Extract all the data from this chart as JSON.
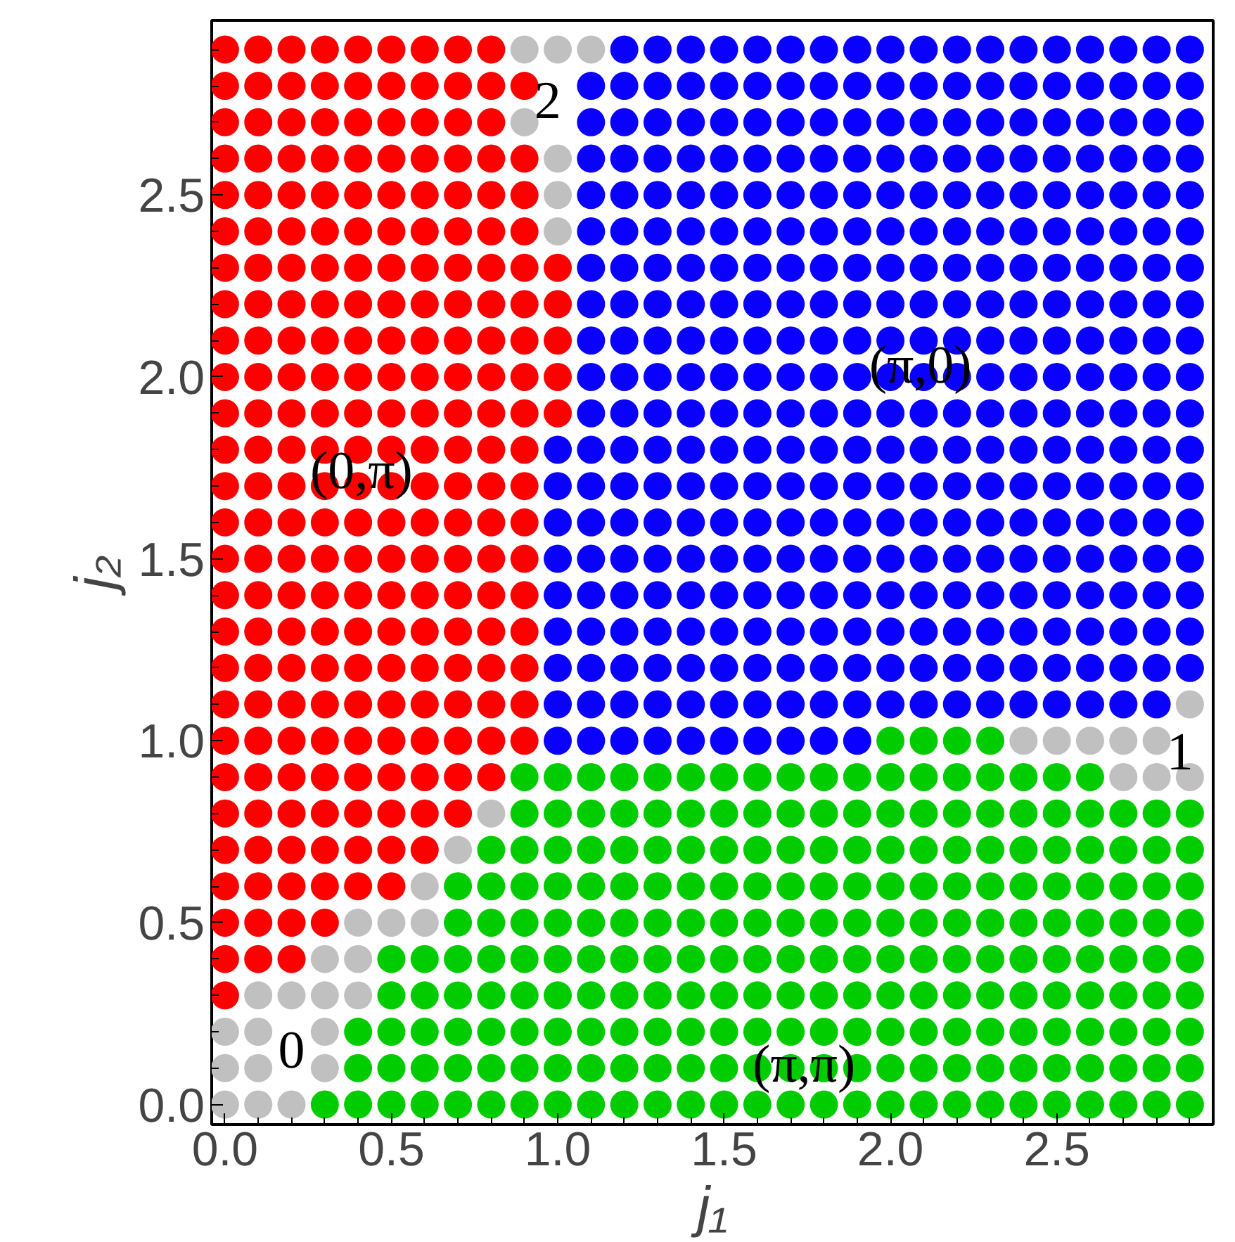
{
  "chart_data": {
    "type": "scatter",
    "xlabel": "j₁",
    "ylabel": "j₂",
    "marker": "circle",
    "grid": false,
    "xlim": [
      -0.04,
      2.97
    ],
    "ylim": [
      -0.055,
      2.98
    ],
    "xticks": [
      {
        "value": 0,
        "label": "0.0"
      },
      {
        "value": 0.1,
        "label": null
      },
      {
        "value": 0.2,
        "label": null
      },
      {
        "value": 0.3,
        "label": null
      },
      {
        "value": 0.4,
        "label": null
      },
      {
        "value": 0.5,
        "label": "0.5"
      },
      {
        "value": 0.6,
        "label": null
      },
      {
        "value": 0.7,
        "label": null
      },
      {
        "value": 0.8,
        "label": null
      },
      {
        "value": 0.9,
        "label": null
      },
      {
        "value": 1,
        "label": "1.0"
      },
      {
        "value": 1.1,
        "label": null
      },
      {
        "value": 1.2,
        "label": null
      },
      {
        "value": 1.3,
        "label": null
      },
      {
        "value": 1.4,
        "label": null
      },
      {
        "value": 1.5,
        "label": "1.5"
      },
      {
        "value": 1.6,
        "label": null
      },
      {
        "value": 1.7,
        "label": null
      },
      {
        "value": 1.8,
        "label": null
      },
      {
        "value": 1.9,
        "label": null
      },
      {
        "value": 2,
        "label": "2.0"
      },
      {
        "value": 2.1,
        "label": null
      },
      {
        "value": 2.2,
        "label": null
      },
      {
        "value": 2.3,
        "label": null
      },
      {
        "value": 2.4,
        "label": null
      },
      {
        "value": 2.5,
        "label": "2.5"
      },
      {
        "value": 2.6,
        "label": null
      },
      {
        "value": 2.7,
        "label": null
      },
      {
        "value": 2.8,
        "label": null
      },
      {
        "value": 2.9,
        "label": null
      }
    ],
    "yticks": [
      {
        "value": 0,
        "label": "0.0"
      },
      {
        "value": 0.1,
        "label": null
      },
      {
        "value": 0.2,
        "label": null
      },
      {
        "value": 0.3,
        "label": null
      },
      {
        "value": 0.4,
        "label": null
      },
      {
        "value": 0.5,
        "label": "0.5"
      },
      {
        "value": 0.6,
        "label": null
      },
      {
        "value": 0.7,
        "label": null
      },
      {
        "value": 0.8,
        "label": null
      },
      {
        "value": 0.9,
        "label": null
      },
      {
        "value": 1,
        "label": "1.0"
      },
      {
        "value": 1.1,
        "label": null
      },
      {
        "value": 1.2,
        "label": null
      },
      {
        "value": 1.3,
        "label": null
      },
      {
        "value": 1.4,
        "label": null
      },
      {
        "value": 1.5,
        "label": "1.5"
      },
      {
        "value": 1.6,
        "label": null
      },
      {
        "value": 1.7,
        "label": null
      },
      {
        "value": 1.8,
        "label": null
      },
      {
        "value": 1.9,
        "label": null
      },
      {
        "value": 2,
        "label": "2.0"
      },
      {
        "value": 2.1,
        "label": null
      },
      {
        "value": 2.2,
        "label": null
      },
      {
        "value": 2.3,
        "label": null
      },
      {
        "value": 2.4,
        "label": null
      },
      {
        "value": 2.5,
        "label": "2.5"
      },
      {
        "value": 2.6,
        "label": null
      },
      {
        "value": 2.7,
        "label": null
      },
      {
        "value": 2.8,
        "label": null
      },
      {
        "value": 2.9,
        "label": null
      }
    ],
    "annotations": [
      {
        "text": "(0,π)",
        "x": 0.41,
        "y": 1.74
      },
      {
        "text": "(π,0)",
        "x": 2.09,
        "y": 2.03
      },
      {
        "text": "(π,π)",
        "x": 1.74,
        "y": 0.11
      },
      "0",
      "2",
      "1"
    ],
    "series": [
      {
        "color": "#ff0000",
        "x": [
          0,
          0.1,
          0.2,
          0.3,
          0.4,
          0.5,
          0.6,
          0.7,
          0.8,
          0,
          0.1,
          0.2,
          0.3,
          0.4,
          0.5,
          0.6,
          0.7,
          0.8,
          0.9,
          0,
          0.1,
          0.2,
          0.3,
          0.4,
          0.5,
          0.6,
          0.7,
          0.8,
          0,
          0.1,
          0.2,
          0.3,
          0.4,
          0.5,
          0.6,
          0.7,
          0.8,
          0.9,
          0,
          0.1,
          0.2,
          0.3,
          0.4,
          0.5,
          0.6,
          0.7,
          0.8,
          0.9,
          0,
          0.1,
          0.2,
          0.3,
          0.4,
          0.5,
          0.6,
          0.7,
          0.8,
          0.9,
          0,
          0.1,
          0.2,
          0.3,
          0.4,
          0.5,
          0.6,
          0.7,
          0.8,
          0.9,
          1,
          0,
          0.1,
          0.2,
          0.3,
          0.4,
          0.5,
          0.6,
          0.7,
          0.8,
          0.9,
          1,
          0,
          0.1,
          0.2,
          0.3,
          0.4,
          0.5,
          0.6,
          0.7,
          0.8,
          0.9,
          1,
          0,
          0.1,
          0.2,
          0.3,
          0.4,
          0.5,
          0.6,
          0.7,
          0.8,
          0.9,
          1,
          0,
          0.1,
          0.2,
          0.3,
          0.4,
          0.5,
          0.6,
          0.7,
          0.8,
          0.9,
          1,
          0,
          0.1,
          0.2,
          0.3,
          0.4,
          0.5,
          0.6,
          0.7,
          0.8,
          0.9,
          0,
          0.1,
          0.2,
          0.3,
          0.4,
          0.5,
          0.6,
          0.7,
          0.8,
          0.9,
          0,
          0.1,
          0.2,
          0.3,
          0.4,
          0.5,
          0.6,
          0.7,
          0.8,
          0.9,
          0,
          0.1,
          0.2,
          0.3,
          0.4,
          0.5,
          0.6,
          0.7,
          0.8,
          0.9,
          0,
          0.1,
          0.2,
          0.3,
          0.4,
          0.5,
          0.6,
          0.7,
          0.8,
          0.9,
          0,
          0.1,
          0.2,
          0.3,
          0.4,
          0.5,
          0.6,
          0.7,
          0.8,
          0.9,
          0,
          0.1,
          0.2,
          0.3,
          0.4,
          0.5,
          0.6,
          0.7,
          0.8,
          0.9,
          0,
          0.1,
          0.2,
          0.3,
          0.4,
          0.5,
          0.6,
          0.7,
          0.8,
          0.9,
          0,
          0.1,
          0.2,
          0.3,
          0.4,
          0.5,
          0.6,
          0.7,
          0.8,
          0.9,
          0,
          0.1,
          0.2,
          0.3,
          0.4,
          0.5,
          0.6,
          0.7,
          0.8,
          0,
          0.1,
          0.2,
          0.3,
          0.4,
          0.5,
          0.6,
          0.7,
          0,
          0.1,
          0.2,
          0.3,
          0.4,
          0.5,
          0.6,
          0,
          0.1,
          0.2,
          0.3,
          0.4,
          0.5,
          0,
          0.1,
          0.2,
          0.3,
          0,
          0.1,
          0.2,
          0
        ],
        "values": [
          2.9,
          2.9,
          2.9,
          2.9,
          2.9,
          2.9,
          2.9,
          2.9,
          2.9,
          2.8,
          2.8,
          2.8,
          2.8,
          2.8,
          2.8,
          2.8,
          2.8,
          2.8,
          2.8,
          2.7,
          2.7,
          2.7,
          2.7,
          2.7,
          2.7,
          2.7,
          2.7,
          2.7,
          2.6,
          2.6,
          2.6,
          2.6,
          2.6,
          2.6,
          2.6,
          2.6,
          2.6,
          2.6,
          2.5,
          2.5,
          2.5,
          2.5,
          2.5,
          2.5,
          2.5,
          2.5,
          2.5,
          2.5,
          2.4,
          2.4,
          2.4,
          2.4,
          2.4,
          2.4,
          2.4,
          2.4,
          2.4,
          2.4,
          2.3,
          2.3,
          2.3,
          2.3,
          2.3,
          2.3,
          2.3,
          2.3,
          2.3,
          2.3,
          2.3,
          2.2,
          2.2,
          2.2,
          2.2,
          2.2,
          2.2,
          2.2,
          2.2,
          2.2,
          2.2,
          2.2,
          2.1,
          2.1,
          2.1,
          2.1,
          2.1,
          2.1,
          2.1,
          2.1,
          2.1,
          2.1,
          2.1,
          2,
          2,
          2,
          2,
          2,
          2,
          2,
          2,
          2,
          2,
          2,
          1.9,
          1.9,
          1.9,
          1.9,
          1.9,
          1.9,
          1.9,
          1.9,
          1.9,
          1.9,
          1.9,
          1.8,
          1.8,
          1.8,
          1.8,
          1.8,
          1.8,
          1.8,
          1.8,
          1.8,
          1.8,
          1.7,
          1.7,
          1.7,
          1.7,
          1.7,
          1.7,
          1.7,
          1.7,
          1.7,
          1.7,
          1.6,
          1.6,
          1.6,
          1.6,
          1.6,
          1.6,
          1.6,
          1.6,
          1.6,
          1.6,
          1.5,
          1.5,
          1.5,
          1.5,
          1.5,
          1.5,
          1.5,
          1.5,
          1.5,
          1.5,
          1.4,
          1.4,
          1.4,
          1.4,
          1.4,
          1.4,
          1.4,
          1.4,
          1.4,
          1.4,
          1.3,
          1.3,
          1.3,
          1.3,
          1.3,
          1.3,
          1.3,
          1.3,
          1.3,
          1.3,
          1.2,
          1.2,
          1.2,
          1.2,
          1.2,
          1.2,
          1.2,
          1.2,
          1.2,
          1.2,
          1.1,
          1.1,
          1.1,
          1.1,
          1.1,
          1.1,
          1.1,
          1.1,
          1.1,
          1.1,
          1,
          1,
          1,
          1,
          1,
          1,
          1,
          1,
          1,
          1,
          0.9,
          0.9,
          0.9,
          0.9,
          0.9,
          0.9,
          0.9,
          0.9,
          0.9,
          0.8,
          0.8,
          0.8,
          0.8,
          0.8,
          0.8,
          0.8,
          0.8,
          0.7,
          0.7,
          0.7,
          0.7,
          0.7,
          0.7,
          0.7,
          0.6,
          0.6,
          0.6,
          0.6,
          0.6,
          0.6,
          0.5,
          0.5,
          0.5,
          0.5,
          0.4,
          0.4,
          0.4,
          0.3
        ]
      },
      {
        "color": "#c0c0c0",
        "x": [
          0.9,
          1,
          1.1,
          0.9,
          1,
          1,
          1,
          2.9,
          2.4,
          2.5,
          2.6,
          2.7,
          2.8,
          2.7,
          2.8,
          2.9,
          0.8,
          0.7,
          0.6,
          0.4,
          0.5,
          0.6,
          0.3,
          0.4,
          0.1,
          0.2,
          0.3,
          0.4,
          0,
          0.1,
          0.3,
          0,
          0.1,
          0.3,
          0,
          0.1,
          0.2
        ],
        "values": [
          2.9,
          2.9,
          2.9,
          2.7,
          2.6,
          2.5,
          2.4,
          1.1,
          1,
          1,
          1,
          1,
          1,
          0.9,
          0.9,
          0.9,
          0.8,
          0.7,
          0.6,
          0.5,
          0.5,
          0.5,
          0.4,
          0.4,
          0.3,
          0.3,
          0.3,
          0.3,
          0.2,
          0.2,
          0.2,
          0.1,
          0.1,
          0.1,
          0,
          0,
          0
        ]
      },
      {
        "color": "#0a00ff",
        "x": [
          1.2,
          1.3,
          1.4,
          1.5,
          1.6,
          1.7,
          1.8,
          1.9,
          2,
          2.1,
          2.2,
          2.3,
          2.4,
          2.5,
          2.6,
          2.7,
          2.8,
          2.9,
          1.1,
          1.2,
          1.3,
          1.4,
          1.5,
          1.6,
          1.7,
          1.8,
          1.9,
          2,
          2.1,
          2.2,
          2.3,
          2.4,
          2.5,
          2.6,
          2.7,
          2.8,
          2.9,
          1.1,
          1.2,
          1.3,
          1.4,
          1.5,
          1.6,
          1.7,
          1.8,
          1.9,
          2,
          2.1,
          2.2,
          2.3,
          2.4,
          2.5,
          2.6,
          2.7,
          2.8,
          2.9,
          1.1,
          1.2,
          1.3,
          1.4,
          1.5,
          1.6,
          1.7,
          1.8,
          1.9,
          2,
          2.1,
          2.2,
          2.3,
          2.4,
          2.5,
          2.6,
          2.7,
          2.8,
          2.9,
          1.1,
          1.2,
          1.3,
          1.4,
          1.5,
          1.6,
          1.7,
          1.8,
          1.9,
          2,
          2.1,
          2.2,
          2.3,
          2.4,
          2.5,
          2.6,
          2.7,
          2.8,
          2.9,
          1.1,
          1.2,
          1.3,
          1.4,
          1.5,
          1.6,
          1.7,
          1.8,
          1.9,
          2,
          2.1,
          2.2,
          2.3,
          2.4,
          2.5,
          2.6,
          2.7,
          2.8,
          2.9,
          1.1,
          1.2,
          1.3,
          1.4,
          1.5,
          1.6,
          1.7,
          1.8,
          1.9,
          2,
          2.1,
          2.2,
          2.3,
          2.4,
          2.5,
          2.6,
          2.7,
          2.8,
          2.9,
          1.1,
          1.2,
          1.3,
          1.4,
          1.5,
          1.6,
          1.7,
          1.8,
          1.9,
          2,
          2.1,
          2.2,
          2.3,
          2.4,
          2.5,
          2.6,
          2.7,
          2.8,
          2.9,
          1.1,
          1.2,
          1.3,
          1.4,
          1.5,
          1.6,
          1.7,
          1.8,
          1.9,
          2,
          2.1,
          2.2,
          2.3,
          2.4,
          2.5,
          2.6,
          2.7,
          2.8,
          2.9,
          1.1,
          1.2,
          1.3,
          1.4,
          1.5,
          1.6,
          1.7,
          1.8,
          1.9,
          2,
          2.1,
          2.2,
          2.3,
          2.4,
          2.5,
          2.6,
          2.7,
          2.8,
          2.9,
          1.1,
          1.2,
          1.3,
          1.4,
          1.5,
          1.6,
          1.7,
          1.8,
          1.9,
          2,
          2.1,
          2.2,
          2.3,
          2.4,
          2.5,
          2.6,
          2.7,
          2.8,
          2.9,
          1,
          1.1,
          1.2,
          1.3,
          1.4,
          1.5,
          1.6,
          1.7,
          1.8,
          1.9,
          2,
          2.1,
          2.2,
          2.3,
          2.4,
          2.5,
          2.6,
          2.7,
          2.8,
          2.9,
          1,
          1.1,
          1.2,
          1.3,
          1.4,
          1.5,
          1.6,
          1.7,
          1.8,
          1.9,
          2,
          2.1,
          2.2,
          2.3,
          2.4,
          2.5,
          2.6,
          2.7,
          2.8,
          2.9,
          1,
          1.1,
          1.2,
          1.3,
          1.4,
          1.5,
          1.6,
          1.7,
          1.8,
          1.9,
          2,
          2.1,
          2.2,
          2.3,
          2.4,
          2.5,
          2.6,
          2.7,
          2.8,
          2.9,
          1,
          1.1,
          1.2,
          1.3,
          1.4,
          1.5,
          1.6,
          1.7,
          1.8,
          1.9,
          2,
          2.1,
          2.2,
          2.3,
          2.4,
          2.5,
          2.6,
          2.7,
          2.8,
          2.9,
          1,
          1.1,
          1.2,
          1.3,
          1.4,
          1.5,
          1.6,
          1.7,
          1.8,
          1.9,
          2,
          2.1,
          2.2,
          2.3,
          2.4,
          2.5,
          2.6,
          2.7,
          2.8,
          2.9,
          1,
          1.1,
          1.2,
          1.3,
          1.4,
          1.5,
          1.6,
          1.7,
          1.8,
          1.9,
          2,
          2.1,
          2.2,
          2.3,
          2.4,
          2.5,
          2.6,
          2.7,
          2.8,
          2.9,
          1,
          1.1,
          1.2,
          1.3,
          1.4,
          1.5,
          1.6,
          1.7,
          1.8,
          1.9,
          2,
          2.1,
          2.2,
          2.3,
          2.4,
          2.5,
          2.6,
          2.7,
          2.8,
          2.9,
          1,
          1.1,
          1.2,
          1.3,
          1.4,
          1.5,
          1.6,
          1.7,
          1.8,
          1.9,
          2,
          2.1,
          2.2,
          2.3,
          2.4,
          2.5,
          2.6,
          2.7,
          2.8,
          1,
          1.1,
          1.2,
          1.3,
          1.4,
          1.5,
          1.6,
          1.7,
          1.8,
          1.9
        ],
        "values": [
          2.9,
          2.9,
          2.9,
          2.9,
          2.9,
          2.9,
          2.9,
          2.9,
          2.9,
          2.9,
          2.9,
          2.9,
          2.9,
          2.9,
          2.9,
          2.9,
          2.9,
          2.9,
          2.8,
          2.8,
          2.8,
          2.8,
          2.8,
          2.8,
          2.8,
          2.8,
          2.8,
          2.8,
          2.8,
          2.8,
          2.8,
          2.8,
          2.8,
          2.8,
          2.8,
          2.8,
          2.8,
          2.7,
          2.7,
          2.7,
          2.7,
          2.7,
          2.7,
          2.7,
          2.7,
          2.7,
          2.7,
          2.7,
          2.7,
          2.7,
          2.7,
          2.7,
          2.7,
          2.7,
          2.7,
          2.7,
          2.6,
          2.6,
          2.6,
          2.6,
          2.6,
          2.6,
          2.6,
          2.6,
          2.6,
          2.6,
          2.6,
          2.6,
          2.6,
          2.6,
          2.6,
          2.6,
          2.6,
          2.6,
          2.6,
          2.5,
          2.5,
          2.5,
          2.5,
          2.5,
          2.5,
          2.5,
          2.5,
          2.5,
          2.5,
          2.5,
          2.5,
          2.5,
          2.5,
          2.5,
          2.5,
          2.5,
          2.5,
          2.5,
          2.4,
          2.4,
          2.4,
          2.4,
          2.4,
          2.4,
          2.4,
          2.4,
          2.4,
          2.4,
          2.4,
          2.4,
          2.4,
          2.4,
          2.4,
          2.4,
          2.4,
          2.4,
          2.4,
          2.3,
          2.3,
          2.3,
          2.3,
          2.3,
          2.3,
          2.3,
          2.3,
          2.3,
          2.3,
          2.3,
          2.3,
          2.3,
          2.3,
          2.3,
          2.3,
          2.3,
          2.3,
          2.3,
          2.2,
          2.2,
          2.2,
          2.2,
          2.2,
          2.2,
          2.2,
          2.2,
          2.2,
          2.2,
          2.2,
          2.2,
          2.2,
          2.2,
          2.2,
          2.2,
          2.2,
          2.2,
          2.2,
          2.1,
          2.1,
          2.1,
          2.1,
          2.1,
          2.1,
          2.1,
          2.1,
          2.1,
          2.1,
          2.1,
          2.1,
          2.1,
          2.1,
          2.1,
          2.1,
          2.1,
          2.1,
          2.1,
          2,
          2,
          2,
          2,
          2,
          2,
          2,
          2,
          2,
          2,
          2,
          2,
          2,
          2,
          2,
          2,
          2,
          2,
          2,
          1.9,
          1.9,
          1.9,
          1.9,
          1.9,
          1.9,
          1.9,
          1.9,
          1.9,
          1.9,
          1.9,
          1.9,
          1.9,
          1.9,
          1.9,
          1.9,
          1.9,
          1.9,
          1.9,
          1.8,
          1.8,
          1.8,
          1.8,
          1.8,
          1.8,
          1.8,
          1.8,
          1.8,
          1.8,
          1.8,
          1.8,
          1.8,
          1.8,
          1.8,
          1.8,
          1.8,
          1.8,
          1.8,
          1.8,
          1.7,
          1.7,
          1.7,
          1.7,
          1.7,
          1.7,
          1.7,
          1.7,
          1.7,
          1.7,
          1.7,
          1.7,
          1.7,
          1.7,
          1.7,
          1.7,
          1.7,
          1.7,
          1.7,
          1.7,
          1.6,
          1.6,
          1.6,
          1.6,
          1.6,
          1.6,
          1.6,
          1.6,
          1.6,
          1.6,
          1.6,
          1.6,
          1.6,
          1.6,
          1.6,
          1.6,
          1.6,
          1.6,
          1.6,
          1.6,
          1.5,
          1.5,
          1.5,
          1.5,
          1.5,
          1.5,
          1.5,
          1.5,
          1.5,
          1.5,
          1.5,
          1.5,
          1.5,
          1.5,
          1.5,
          1.5,
          1.5,
          1.5,
          1.5,
          1.5,
          1.4,
          1.4,
          1.4,
          1.4,
          1.4,
          1.4,
          1.4,
          1.4,
          1.4,
          1.4,
          1.4,
          1.4,
          1.4,
          1.4,
          1.4,
          1.4,
          1.4,
          1.4,
          1.4,
          1.4,
          1.3,
          1.3,
          1.3,
          1.3,
          1.3,
          1.3,
          1.3,
          1.3,
          1.3,
          1.3,
          1.3,
          1.3,
          1.3,
          1.3,
          1.3,
          1.3,
          1.3,
          1.3,
          1.3,
          1.3,
          1.2,
          1.2,
          1.2,
          1.2,
          1.2,
          1.2,
          1.2,
          1.2,
          1.2,
          1.2,
          1.2,
          1.2,
          1.2,
          1.2,
          1.2,
          1.2,
          1.2,
          1.2,
          1.2,
          1.2,
          1.1,
          1.1,
          1.1,
          1.1,
          1.1,
          1.1,
          1.1,
          1.1,
          1.1,
          1.1,
          1.1,
          1.1,
          1.1,
          1.1,
          1.1,
          1.1,
          1.1,
          1.1,
          1.1,
          1,
          1,
          1,
          1,
          1,
          1,
          1,
          1,
          1,
          1
        ]
      },
      {
        "color": "#00cc00",
        "x": [
          2,
          2.1,
          2.2,
          2.3,
          0.9,
          1,
          1.1,
          1.2,
          1.3,
          1.4,
          1.5,
          1.6,
          1.7,
          1.8,
          1.9,
          2,
          2.1,
          2.2,
          2.3,
          2.4,
          2.5,
          2.6,
          0.9,
          1,
          1.1,
          1.2,
          1.3,
          1.4,
          1.5,
          1.6,
          1.7,
          1.8,
          1.9,
          2,
          2.1,
          2.2,
          2.3,
          2.4,
          2.5,
          2.6,
          2.7,
          2.8,
          2.9,
          0.8,
          0.9,
          1,
          1.1,
          1.2,
          1.3,
          1.4,
          1.5,
          1.6,
          1.7,
          1.8,
          1.9,
          2,
          2.1,
          2.2,
          2.3,
          2.4,
          2.5,
          2.6,
          2.7,
          2.8,
          2.9,
          0.7,
          0.8,
          0.9,
          1,
          1.1,
          1.2,
          1.3,
          1.4,
          1.5,
          1.6,
          1.7,
          1.8,
          1.9,
          2,
          2.1,
          2.2,
          2.3,
          2.4,
          2.5,
          2.6,
          2.7,
          2.8,
          2.9,
          0.7,
          0.8,
          0.9,
          1,
          1.1,
          1.2,
          1.3,
          1.4,
          1.5,
          1.6,
          1.7,
          1.8,
          1.9,
          2,
          2.1,
          2.2,
          2.3,
          2.4,
          2.5,
          2.6,
          2.7,
          2.8,
          2.9,
          0.5,
          0.6,
          0.7,
          0.8,
          0.9,
          1,
          1.1,
          1.2,
          1.3,
          1.4,
          1.5,
          1.6,
          1.7,
          1.8,
          1.9,
          2,
          2.1,
          2.2,
          2.3,
          2.4,
          2.5,
          2.6,
          2.7,
          2.8,
          2.9,
          0.5,
          0.6,
          0.7,
          0.8,
          0.9,
          1,
          1.1,
          1.2,
          1.3,
          1.4,
          1.5,
          1.6,
          1.7,
          1.8,
          1.9,
          2,
          2.1,
          2.2,
          2.3,
          2.4,
          2.5,
          2.6,
          2.7,
          2.8,
          2.9,
          0.4,
          0.5,
          0.6,
          0.7,
          0.8,
          0.9,
          1,
          1.1,
          1.2,
          1.3,
          1.4,
          1.5,
          1.6,
          1.7,
          1.8,
          1.9,
          2,
          2.1,
          2.2,
          2.3,
          2.4,
          2.5,
          2.6,
          2.7,
          2.8,
          2.9,
          0.4,
          0.5,
          0.6,
          0.7,
          0.8,
          0.9,
          1,
          1.1,
          1.2,
          1.3,
          1.4,
          1.5,
          1.6,
          1.7,
          1.8,
          1.9,
          2,
          2.1,
          2.2,
          2.3,
          2.4,
          2.5,
          2.6,
          2.7,
          2.8,
          2.9,
          0.3,
          0.4,
          0.5,
          0.6,
          0.7,
          0.8,
          0.9,
          1,
          1.1,
          1.2,
          1.3,
          1.4,
          1.5,
          1.6,
          1.7,
          1.8,
          1.9,
          2,
          2.1,
          2.2,
          2.3,
          2.4,
          2.5,
          2.6,
          2.7,
          2.8,
          2.9
        ],
        "values": [
          1,
          1,
          1,
          1,
          0.9,
          0.9,
          0.9,
          0.9,
          0.9,
          0.9,
          0.9,
          0.9,
          0.9,
          0.9,
          0.9,
          0.9,
          0.9,
          0.9,
          0.9,
          0.9,
          0.9,
          0.9,
          0.8,
          0.8,
          0.8,
          0.8,
          0.8,
          0.8,
          0.8,
          0.8,
          0.8,
          0.8,
          0.8,
          0.8,
          0.8,
          0.8,
          0.8,
          0.8,
          0.8,
          0.8,
          0.8,
          0.8,
          0.8,
          0.7,
          0.7,
          0.7,
          0.7,
          0.7,
          0.7,
          0.7,
          0.7,
          0.7,
          0.7,
          0.7,
          0.7,
          0.7,
          0.7,
          0.7,
          0.7,
          0.7,
          0.7,
          0.7,
          0.7,
          0.7,
          0.7,
          0.6,
          0.6,
          0.6,
          0.6,
          0.6,
          0.6,
          0.6,
          0.6,
          0.6,
          0.6,
          0.6,
          0.6,
          0.6,
          0.6,
          0.6,
          0.6,
          0.6,
          0.6,
          0.6,
          0.6,
          0.6,
          0.6,
          0.6,
          0.5,
          0.5,
          0.5,
          0.5,
          0.5,
          0.5,
          0.5,
          0.5,
          0.5,
          0.5,
          0.5,
          0.5,
          0.5,
          0.5,
          0.5,
          0.5,
          0.5,
          0.5,
          0.5,
          0.5,
          0.5,
          0.5,
          0.5,
          0.4,
          0.4,
          0.4,
          0.4,
          0.4,
          0.4,
          0.4,
          0.4,
          0.4,
          0.4,
          0.4,
          0.4,
          0.4,
          0.4,
          0.4,
          0.4,
          0.4,
          0.4,
          0.4,
          0.4,
          0.4,
          0.4,
          0.4,
          0.4,
          0.4,
          0.3,
          0.3,
          0.3,
          0.3,
          0.3,
          0.3,
          0.3,
          0.3,
          0.3,
          0.3,
          0.3,
          0.3,
          0.3,
          0.3,
          0.3,
          0.3,
          0.3,
          0.3,
          0.3,
          0.3,
          0.3,
          0.3,
          0.3,
          0.3,
          0.3,
          0.2,
          0.2,
          0.2,
          0.2,
          0.2,
          0.2,
          0.2,
          0.2,
          0.2,
          0.2,
          0.2,
          0.2,
          0.2,
          0.2,
          0.2,
          0.2,
          0.2,
          0.2,
          0.2,
          0.2,
          0.2,
          0.2,
          0.2,
          0.2,
          0.2,
          0.2,
          0.1,
          0.1,
          0.1,
          0.1,
          0.1,
          0.1,
          0.1,
          0.1,
          0.1,
          0.1,
          0.1,
          0.1,
          0.1,
          0.1,
          0.1,
          0.1,
          0.1,
          0.1,
          0.1,
          0.1,
          0.1,
          0.1,
          0.1,
          0.1,
          0.1,
          0.1,
          0,
          0,
          0,
          0,
          0,
          0,
          0,
          0,
          0,
          0,
          0,
          0,
          0,
          0,
          0,
          0,
          0,
          0,
          0,
          0,
          0,
          0,
          0,
          0,
          0,
          0,
          0
        ]
      }
    ]
  }
}
